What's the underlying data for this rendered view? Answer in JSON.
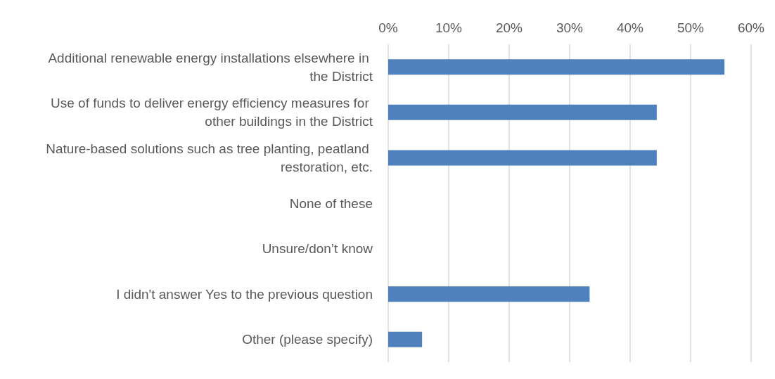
{
  "chart_data": {
    "type": "bar",
    "orientation": "horizontal",
    "categories": [
      "Additional renewable energy installations elsewhere in the District",
      "Use of funds to deliver energy efficiency measures for other buildings in the District",
      "Nature-based solutions such as tree planting, peatland restoration, etc.",
      "None of these",
      "Unsure/don’t know",
      "I didn't answer Yes to the previous question",
      "Other (please specify)"
    ],
    "values": [
      55.6,
      44.4,
      44.4,
      0,
      0,
      33.3,
      5.6
    ],
    "color": "#4f81bd",
    "xlim": [
      0,
      60
    ],
    "xticks": [
      {
        "value": 0,
        "label": "0%"
      },
      {
        "value": 10,
        "label": "10%"
      },
      {
        "value": 20,
        "label": "20%"
      },
      {
        "value": 30,
        "label": "30%"
      },
      {
        "value": 40,
        "label": "40%"
      },
      {
        "value": 50,
        "label": "50%"
      },
      {
        "value": 60,
        "label": "60%"
      }
    ],
    "grid": "x"
  }
}
